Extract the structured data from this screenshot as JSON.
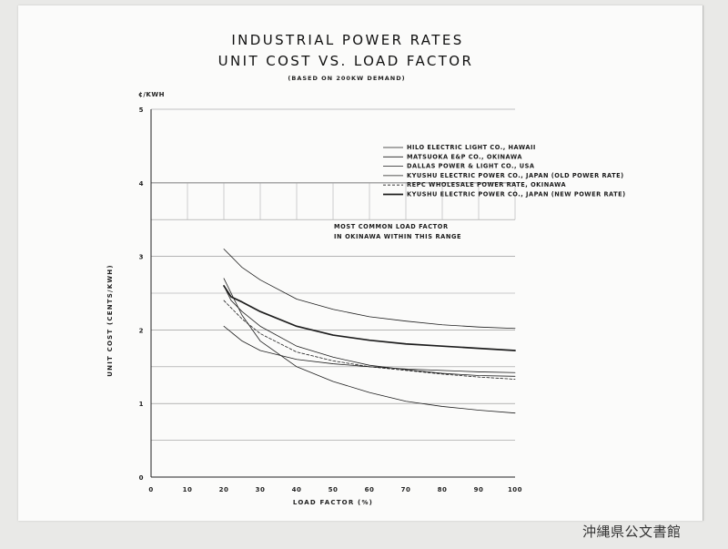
{
  "chart_data": {
    "type": "line",
    "title": "INDUSTRIAL POWER RATES",
    "subtitle": "UNIT COST VS. LOAD FACTOR",
    "note": "(BASED ON 200KW DEMAND)",
    "unit_label": "¢/KWH",
    "xlabel": "LOAD FACTOR (%)",
    "ylabel": "UNIT COST (CENTS/KWH)",
    "xlim": [
      0,
      100
    ],
    "ylim": [
      0,
      5
    ],
    "x_ticks": [
      0,
      10,
      20,
      30,
      40,
      50,
      60,
      70,
      80,
      90,
      100
    ],
    "y_ticks": [
      0,
      1,
      2,
      3,
      4,
      5
    ],
    "grid": true,
    "legend_position": "top-right",
    "annotation": [
      "MOST COMMON LOAD FACTOR",
      "IN OKINAWA WITHIN THIS RANGE"
    ],
    "series": [
      {
        "name": "HILO ELECTRIC LIGHT CO., HAWAII",
        "style": "solid-thin",
        "x": [
          20,
          25,
          30,
          40,
          50,
          60,
          70,
          80,
          90,
          100
        ],
        "y": [
          3.1,
          2.85,
          2.68,
          2.42,
          2.28,
          2.18,
          2.12,
          2.07,
          2.04,
          2.02
        ]
      },
      {
        "name": "MATSUOKA E&P CO., OKINAWA",
        "style": "solid-thin",
        "x": [
          20,
          25,
          30,
          40,
          50,
          60,
          70,
          80,
          90,
          100
        ],
        "y": [
          2.7,
          2.2,
          1.85,
          1.5,
          1.3,
          1.15,
          1.03,
          0.96,
          0.91,
          0.87
        ]
      },
      {
        "name": "DALLAS POWER & LIGHT CO., USA",
        "style": "solid-thin",
        "x": [
          20,
          25,
          30,
          40,
          50,
          60,
          70,
          80,
          90,
          100
        ],
        "y": [
          2.05,
          1.85,
          1.72,
          1.6,
          1.54,
          1.5,
          1.47,
          1.45,
          1.43,
          1.42
        ]
      },
      {
        "name": "KYUSHU ELECTRIC POWER CO., JAPAN (OLD POWER RATE)",
        "style": "solid-thin",
        "x": [
          20,
          22,
          25,
          30,
          40,
          50,
          60,
          70,
          80,
          90,
          100
        ],
        "y": [
          2.6,
          2.4,
          2.25,
          2.05,
          1.78,
          1.63,
          1.52,
          1.46,
          1.41,
          1.38,
          1.37
        ]
      },
      {
        "name": "REPC WHOLESALE POWER RATE, OKINAWA",
        "style": "dashed",
        "x": [
          20,
          25,
          30,
          40,
          50,
          60,
          70,
          80,
          90,
          100
        ],
        "y": [
          2.4,
          2.15,
          1.95,
          1.7,
          1.58,
          1.5,
          1.45,
          1.4,
          1.36,
          1.33
        ]
      },
      {
        "name": "KYUSHU ELECTRIC POWER CO., JAPAN (NEW POWER RATE)",
        "style": "solid-thick",
        "x": [
          20,
          22,
          25,
          30,
          40,
          50,
          60,
          70,
          80,
          90,
          100
        ],
        "y": [
          2.6,
          2.45,
          2.38,
          2.25,
          2.05,
          1.93,
          1.86,
          1.81,
          1.78,
          1.75,
          1.72
        ]
      }
    ]
  },
  "archive_stamp": "沖縄県公文書館"
}
